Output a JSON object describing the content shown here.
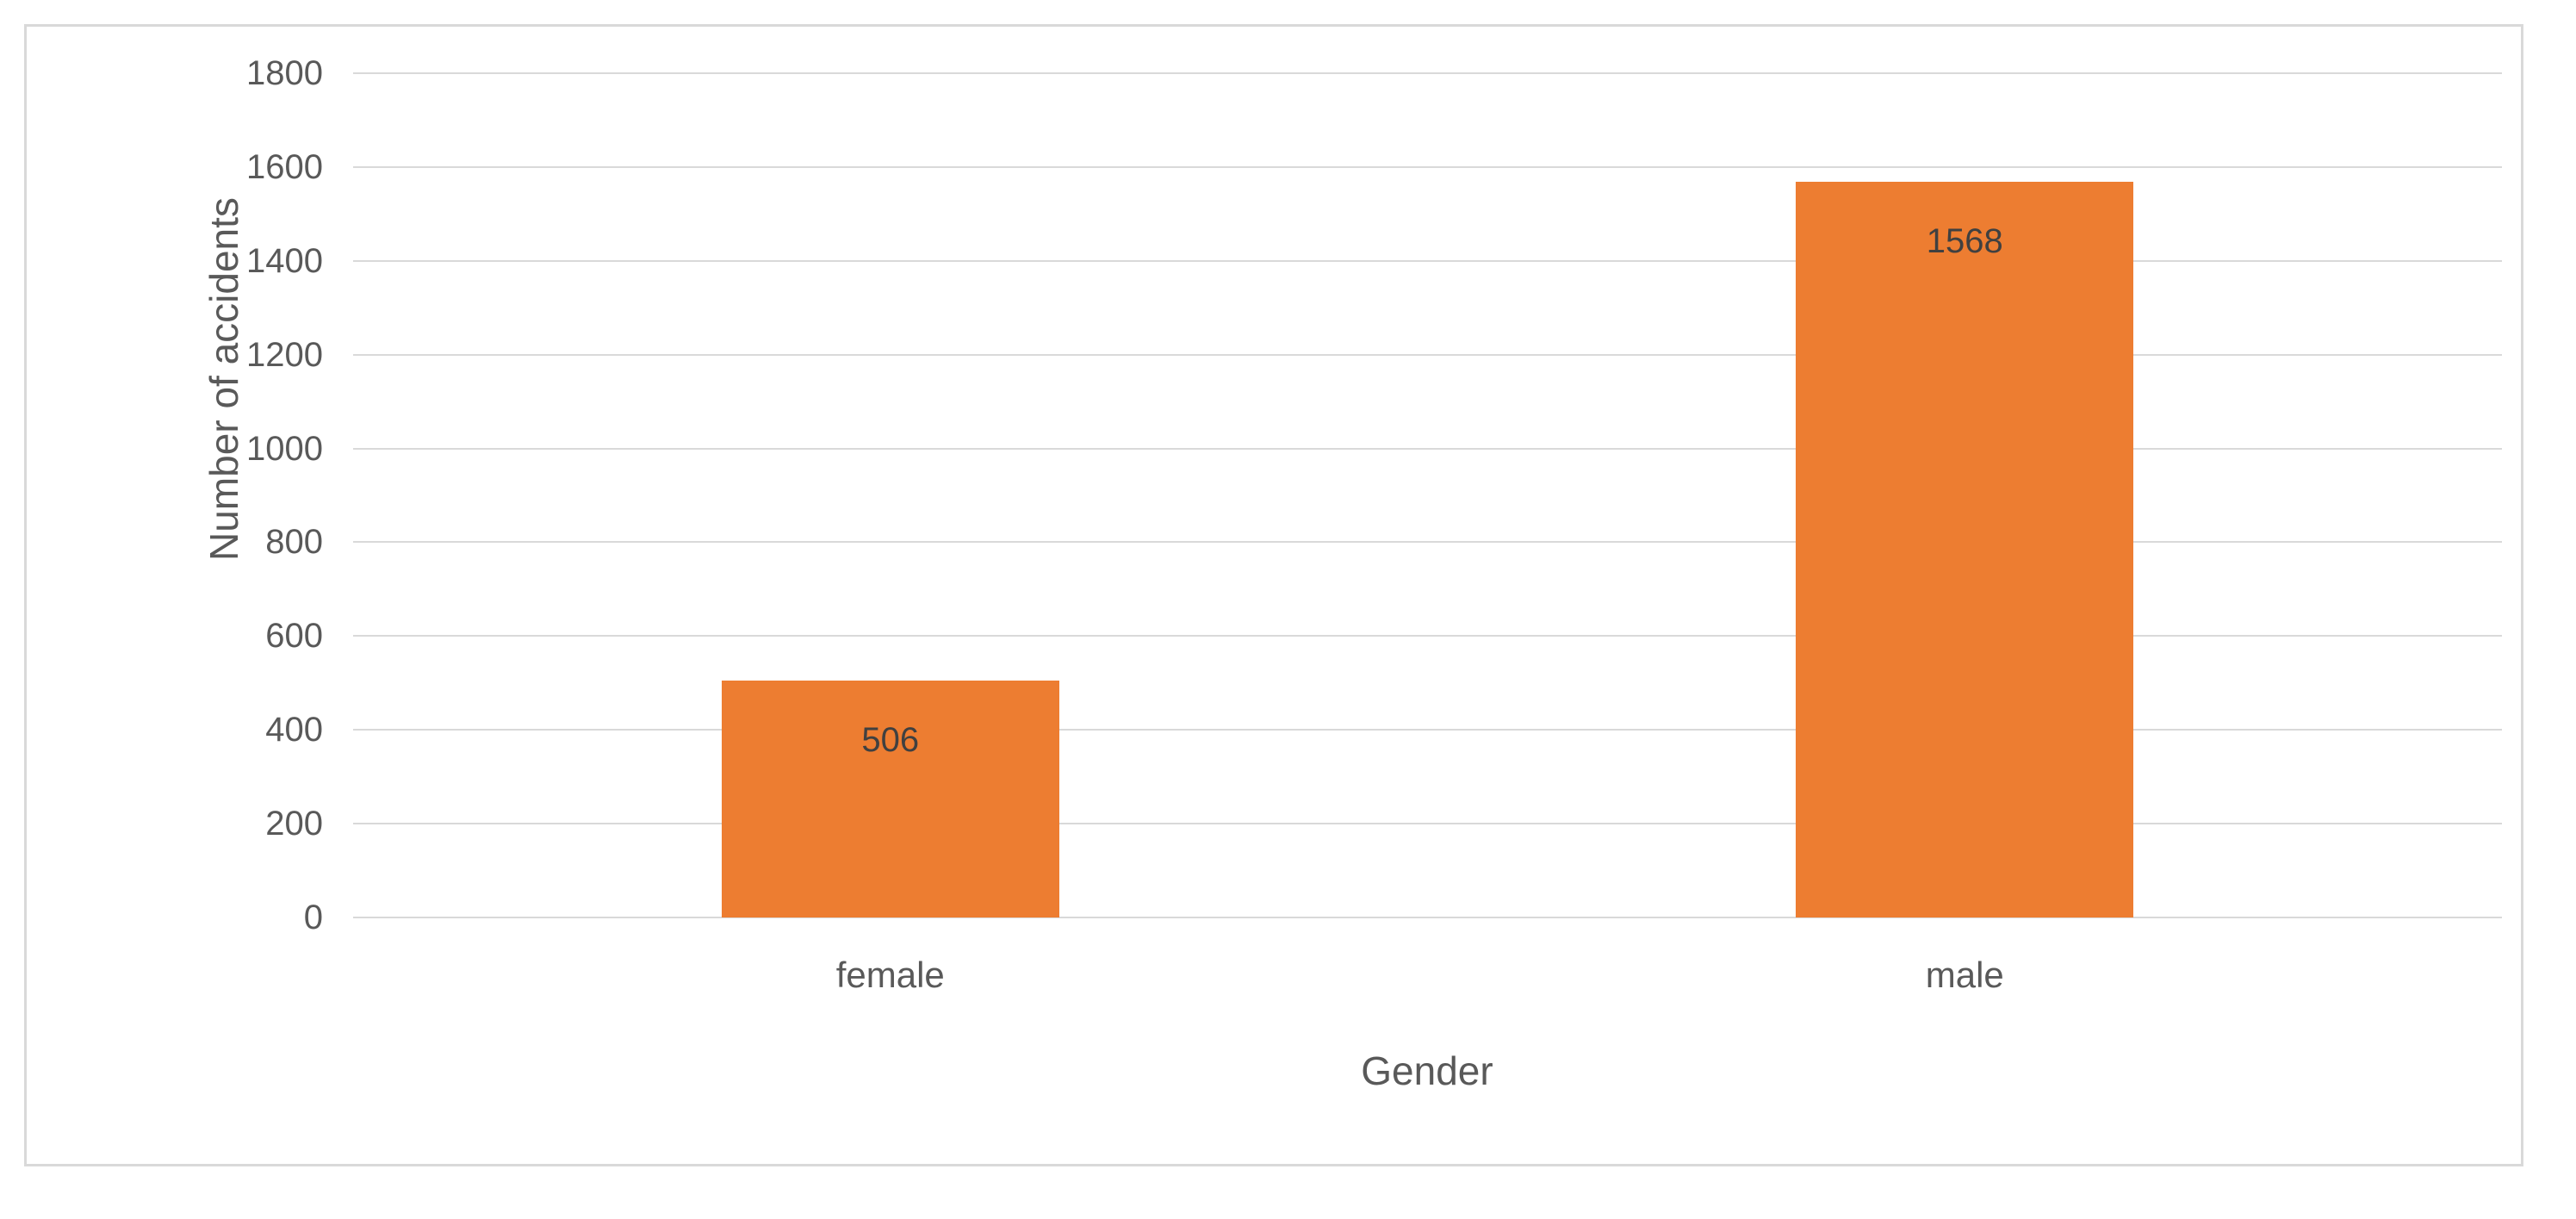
{
  "chart_data": {
    "type": "bar",
    "title": "",
    "categories": [
      "female",
      "male"
    ],
    "values": [
      506,
      1568
    ],
    "data_labels": [
      "506",
      "1568"
    ],
    "xlabel": "Gender",
    "ylabel": "Number of accidents",
    "ylim": [
      0,
      1800
    ],
    "ytick_step": 200,
    "yticks": [
      0,
      200,
      400,
      600,
      800,
      1000,
      1200,
      1400,
      1600,
      1800
    ],
    "grid": true,
    "legend": "none",
    "bar_color": "#ed7d31",
    "data_label_color": "#404040",
    "axis_label_color": "#595959",
    "gridline_color": "#d9d9d9",
    "frame_border_color": "#d9d9d9"
  }
}
